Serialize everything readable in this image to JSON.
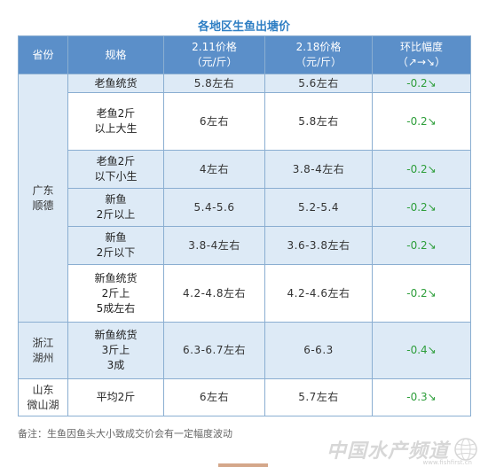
{
  "title": "各地区生鱼出塘价",
  "headers": {
    "province": "省份",
    "spec": "规格",
    "price1_line1": "2.11价格",
    "price1_line2": "（元/斤）",
    "price2_line1": "2.18价格",
    "price2_line2": "（元/斤）",
    "change_line1": "环比幅度",
    "change_line2": "（↗→↘）"
  },
  "groups": [
    {
      "province": [
        "广东",
        "顺德"
      ],
      "rows": [
        {
          "spec": [
            "老鱼统货"
          ],
          "p1": "5.8左右",
          "p2": "5.6左右",
          "chg": "-0.2↘"
        },
        {
          "spec": [
            "老鱼2斤",
            "以上大生"
          ],
          "p1": "6左右",
          "p2": "5.8左右",
          "chg": "-0.2↘"
        },
        {
          "spec": [
            "老鱼2斤",
            "以下小生"
          ],
          "p1": "4左右",
          "p2": "3.8-4左右",
          "chg": "-0.2↘"
        },
        {
          "spec": [
            "新鱼",
            "2斤以上"
          ],
          "p1": "5.4-5.6",
          "p2": "5.2-5.4",
          "chg": "-0.2↘"
        },
        {
          "spec": [
            "新鱼",
            "2斤以下"
          ],
          "p1": "3.8-4左右",
          "p2": "3.6-3.8左右",
          "chg": "-0.2↘"
        },
        {
          "spec": [
            "新鱼统货",
            "2斤上",
            "5成左右"
          ],
          "p1": "4.2-4.8左右",
          "p2": "4.2-4.6左右",
          "chg": "-0.2↘"
        }
      ]
    },
    {
      "province": [
        "浙江",
        "湖州"
      ],
      "rows": [
        {
          "spec": [
            "新鱼统货",
            "3斤上",
            "3成"
          ],
          "p1": "6.3-6.7左右",
          "p2": "6-6.3",
          "chg": "-0.4↘"
        }
      ]
    },
    {
      "province": [
        "山东",
        "微山湖"
      ],
      "rows": [
        {
          "spec": [
            "平均2斤"
          ],
          "p1": "6左右",
          "p2": "5.7左右",
          "chg": "-0.3↘"
        }
      ]
    }
  ],
  "note": "备注：生鱼因鱼头大小致成交价会有一定幅度波动",
  "watermark": {
    "text": "中国水产频道",
    "url": "www.fishfirst.cn"
  },
  "colors": {
    "header_bg": "#5b8fc9",
    "alt_row_bg": "#ddeaf6",
    "border": "#8aaed1",
    "title": "#2f7fc4",
    "change_green": "#2e9e3b"
  }
}
